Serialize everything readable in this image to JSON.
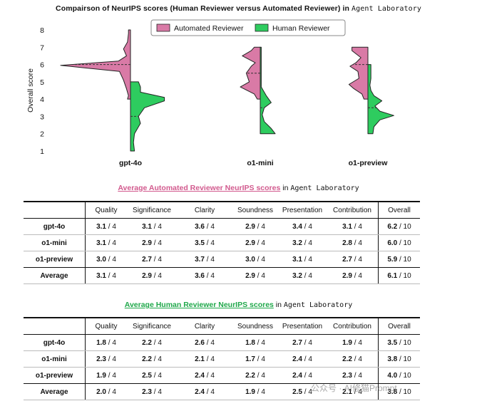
{
  "chart_title": {
    "main": "Compairson of NeurIPS scores (Human Reviewer versus Automated Reviewer) in",
    "mono": "Agent Laboratory"
  },
  "chart_data": {
    "type": "violin",
    "title": "Compairson of NeurIPS scores (Human Reviewer versus Automated Reviewer) in Agent Laboratory",
    "ylabel": "Overall score",
    "ylim": [
      1,
      8
    ],
    "yticks": [
      1,
      2,
      3,
      4,
      5,
      6,
      7,
      8
    ],
    "categories": [
      "gpt-4o",
      "o1-mini",
      "o1-preview"
    ],
    "legend": {
      "position": "top-right",
      "entries": [
        "Automated Reviewer",
        "Human Reviewer"
      ]
    },
    "colors": {
      "automated": "#d97aa6",
      "human": "#2ecc5f"
    },
    "series": [
      {
        "name": "Automated Reviewer",
        "side": "left",
        "violins": [
          {
            "category": "gpt-4o",
            "range": [
              4,
              8
            ],
            "mean": 6,
            "profile": [
              [
                4,
                0.15
              ],
              [
                4.2,
                0.1
              ],
              [
                4.6,
                0.2
              ],
              [
                5.1,
                0.35
              ],
              [
                5.6,
                0.55
              ],
              [
                5.95,
                3.5
              ],
              [
                6.2,
                0.6
              ],
              [
                6.5,
                0.2
              ],
              [
                6.9,
                0.35
              ],
              [
                7.3,
                0.15
              ],
              [
                7.8,
                0.1
              ],
              [
                8,
                0.1
              ]
            ]
          },
          {
            "category": "o1-mini",
            "range": [
              4,
              7
            ],
            "mean": 5.5,
            "profile": [
              [
                4,
                0.15
              ],
              [
                4.3,
                0.3
              ],
              [
                4.7,
                1.0
              ],
              [
                5.0,
                0.55
              ],
              [
                5.5,
                0.7
              ],
              [
                5.9,
                0.45
              ],
              [
                6.1,
                0.25
              ],
              [
                6.5,
                0.9
              ],
              [
                6.8,
                0.45
              ],
              [
                7,
                0.3
              ]
            ]
          },
          {
            "category": "o1-preview",
            "range": [
              4,
              7
            ],
            "mean": 6,
            "profile": [
              [
                4,
                0.2
              ],
              [
                4.3,
                0.3
              ],
              [
                4.6,
                0.7
              ],
              [
                4.85,
                0.95
              ],
              [
                5.2,
                0.45
              ],
              [
                5.6,
                0.5
              ],
              [
                5.9,
                0.9
              ],
              [
                6.1,
                0.6
              ],
              [
                6.4,
                0.35
              ],
              [
                6.8,
                0.8
              ],
              [
                7,
                0.8
              ]
            ]
          }
        ]
      },
      {
        "name": "Human Reviewer",
        "side": "right",
        "violins": [
          {
            "category": "gpt-4o",
            "range": [
              1,
              5
            ],
            "mean": 3,
            "profile": [
              [
                1,
                0.2
              ],
              [
                1.5,
                0.15
              ],
              [
                2,
                0.2
              ],
              [
                2.6,
                0.5
              ],
              [
                3,
                0.4
              ],
              [
                3.5,
                0.7
              ],
              [
                3.9,
                1.7
              ],
              [
                4.1,
                1.7
              ],
              [
                4.4,
                0.5
              ],
              [
                4.7,
                0.5
              ],
              [
                5,
                0.4
              ]
            ]
          },
          {
            "category": "o1-mini",
            "range": [
              2,
              7
            ],
            "mean": 3.5,
            "profile": [
              [
                2,
                0.75
              ],
              [
                2.3,
                0.55
              ],
              [
                2.7,
                0.2
              ],
              [
                3.1,
                0.1
              ],
              [
                3.5,
                0.2
              ],
              [
                3.8,
                0.55
              ],
              [
                4.2,
                0.3
              ],
              [
                4.7,
                0.05
              ],
              [
                5.3,
                0.05
              ],
              [
                6,
                0.05
              ],
              [
                7,
                0.05
              ]
            ]
          },
          {
            "category": "o1-preview",
            "range": [
              2,
              6
            ],
            "mean": 3.5,
            "profile": [
              [
                2,
                0.25
              ],
              [
                2.4,
                0.3
              ],
              [
                2.8,
                0.6
              ],
              [
                3.05,
                1.3
              ],
              [
                3.3,
                0.6
              ],
              [
                3.6,
                0.35
              ],
              [
                3.9,
                0.7
              ],
              [
                4.2,
                0.3
              ],
              [
                4.5,
                0.15
              ],
              [
                4.8,
                0.1
              ],
              [
                5.2,
                0.15
              ],
              [
                5.6,
                0.15
              ],
              [
                6,
                0.15
              ]
            ]
          }
        ]
      }
    ]
  },
  "automated_table": {
    "title_colored": "Average Automated Reviewer NeurIPS scores",
    "title_in": "in",
    "title_mono": "Agent Laboratory",
    "headers": [
      "",
      "Quality",
      "Significance",
      "Clarity",
      "Soundness",
      "Presentation",
      "Contribution",
      "Overall"
    ],
    "rows": [
      {
        "name": "gpt-4o",
        "cells": [
          "3.1",
          "3.1",
          "3.6",
          "2.9",
          "3.4",
          "3.1"
        ],
        "overall": "6.2"
      },
      {
        "name": "o1-mini",
        "cells": [
          "3.1",
          "2.9",
          "3.5",
          "2.9",
          "3.2",
          "2.8"
        ],
        "overall": "6.0"
      },
      {
        "name": "o1-preview",
        "cells": [
          "3.0",
          "2.7",
          "3.7",
          "3.0",
          "3.1",
          "2.7"
        ],
        "overall": "5.9"
      }
    ],
    "average": {
      "name": "Average",
      "cells": [
        "3.1",
        "2.9",
        "3.6",
        "2.9",
        "3.2",
        "2.9"
      ],
      "overall": "6.1"
    }
  },
  "human_table": {
    "title_colored": "Average Human Reviewer NeurIPS scores",
    "title_in": "in",
    "title_mono": "Agent Laboratory",
    "headers": [
      "",
      "Quality",
      "Significance",
      "Clarity",
      "Soundness",
      "Presentation",
      "Contribution",
      "Overall"
    ],
    "rows": [
      {
        "name": "gpt-4o",
        "cells": [
          "1.8",
          "2.2",
          "2.6",
          "1.8",
          "2.7",
          "1.9"
        ],
        "overall": "3.5"
      },
      {
        "name": "o1-mini",
        "cells": [
          "2.3",
          "2.2",
          "2.1",
          "1.7",
          "2.4",
          "2.2"
        ],
        "overall": "3.8"
      },
      {
        "name": "o1-preview",
        "cells": [
          "1.9",
          "2.5",
          "2.4",
          "2.2",
          "2.4",
          "2.3"
        ],
        "overall": "4.0"
      }
    ],
    "average": {
      "name": "Average",
      "cells": [
        "2.0",
        "2.3",
        "2.4",
        "1.9",
        "2.5",
        "2.1"
      ],
      "overall": "3.8"
    }
  },
  "suffixes": {
    "sub": "/ 4",
    "overall": "/ 10"
  },
  "watermark": "公众号 · AI修猫Prompt"
}
